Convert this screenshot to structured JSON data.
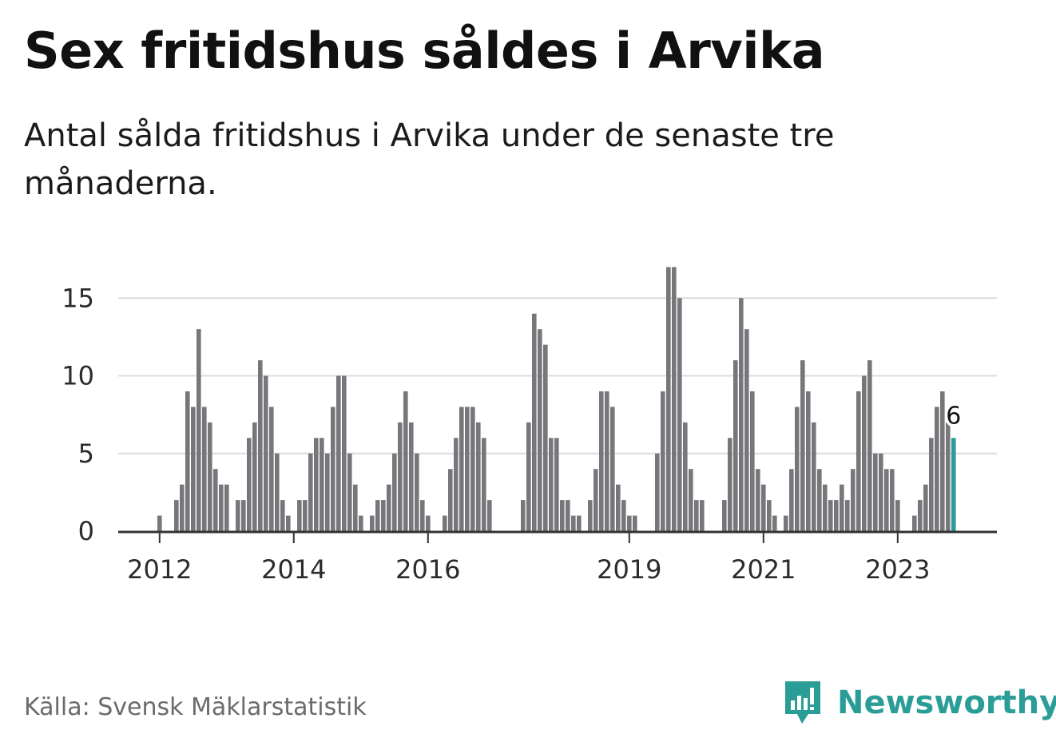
{
  "header": {
    "title": "Sex fritidshus såldes i Arvika",
    "subtitle": "Antal sålda fritidshus i Arvika under de senaste tre månaderna."
  },
  "footer": {
    "source": "Källa: Svensk Mäklarstatistik",
    "logo_text": "Newsworthy",
    "logo_icon": "bar-chart-speech-bubble-icon"
  },
  "colors": {
    "bar": "#77767a",
    "highlight": "#2a9d96",
    "grid": "#dcdcdc",
    "axis": "#333333",
    "brand": "#2a9d96"
  },
  "chart_data": {
    "type": "bar",
    "title": "Sex fritidshus såldes i Arvika",
    "subtitle": "Antal sålda fritidshus i Arvika under de senaste tre månaderna.",
    "xlabel": "",
    "ylabel": "",
    "ylim": [
      0,
      17
    ],
    "yticks": [
      0,
      5,
      10,
      15
    ],
    "grid": true,
    "legend": "none",
    "x_range": [
      "2011-06",
      "2024-02"
    ],
    "x_ticks": [
      {
        "x": "2012-01",
        "label": "2012"
      },
      {
        "x": "2014-01",
        "label": "2014"
      },
      {
        "x": "2016-01",
        "label": "2016"
      },
      {
        "x": "2019-01",
        "label": "2019"
      },
      {
        "x": "2021-01",
        "label": "2021"
      },
      {
        "x": "2023-01",
        "label": "2023"
      }
    ],
    "x": [
      "2011-06",
      "2011-07",
      "2011-08",
      "2011-09",
      "2011-10",
      "2011-11",
      "2011-12",
      "2012-01",
      "2012-02",
      "2012-03",
      "2012-04",
      "2012-05",
      "2012-06",
      "2012-07",
      "2012-08",
      "2012-09",
      "2012-10",
      "2012-11",
      "2012-12",
      "2013-01",
      "2013-02",
      "2013-03",
      "2013-04",
      "2013-05",
      "2013-06",
      "2013-07",
      "2013-08",
      "2013-09",
      "2013-10",
      "2013-11",
      "2013-12",
      "2014-01",
      "2014-02",
      "2014-03",
      "2014-04",
      "2014-05",
      "2014-06",
      "2014-07",
      "2014-08",
      "2014-09",
      "2014-10",
      "2014-11",
      "2014-12",
      "2015-01",
      "2015-02",
      "2015-03",
      "2015-04",
      "2015-05",
      "2015-06",
      "2015-07",
      "2015-08",
      "2015-09",
      "2015-10",
      "2015-11",
      "2015-12",
      "2016-01",
      "2016-02",
      "2016-03",
      "2016-04",
      "2016-05",
      "2016-06",
      "2016-07",
      "2016-08",
      "2016-09",
      "2016-10",
      "2016-11",
      "2016-12",
      "2017-01",
      "2017-02",
      "2017-03",
      "2017-04",
      "2017-05",
      "2017-06",
      "2017-07",
      "2017-08",
      "2017-09",
      "2017-10",
      "2017-11",
      "2017-12",
      "2018-01",
      "2018-02",
      "2018-03",
      "2018-04",
      "2018-05",
      "2018-06",
      "2018-07",
      "2018-08",
      "2018-09",
      "2018-10",
      "2018-11",
      "2018-12",
      "2019-01",
      "2019-02",
      "2019-03",
      "2019-04",
      "2019-05",
      "2019-06",
      "2019-07",
      "2019-08",
      "2019-09",
      "2019-10",
      "2019-11",
      "2019-12",
      "2020-01",
      "2020-02",
      "2020-03",
      "2020-04",
      "2020-05",
      "2020-06",
      "2020-07",
      "2020-08",
      "2020-09",
      "2020-10",
      "2020-11",
      "2020-12",
      "2021-01",
      "2021-02",
      "2021-03",
      "2021-04",
      "2021-05",
      "2021-06",
      "2021-07",
      "2021-08",
      "2021-09",
      "2021-10",
      "2021-11",
      "2021-12",
      "2022-01",
      "2022-02",
      "2022-03",
      "2022-04",
      "2022-05",
      "2022-06",
      "2022-07",
      "2022-08",
      "2022-09",
      "2022-10",
      "2022-11",
      "2022-12",
      "2023-01",
      "2023-02",
      "2023-03",
      "2023-04",
      "2023-05",
      "2023-06",
      "2023-07",
      "2023-08",
      "2023-09",
      "2023-10",
      "2023-11"
    ],
    "values": [
      0,
      0,
      0,
      0,
      0,
      0,
      0,
      1,
      0,
      0,
      2,
      3,
      9,
      8,
      13,
      8,
      7,
      4,
      3,
      3,
      0,
      2,
      2,
      6,
      7,
      11,
      10,
      8,
      5,
      2,
      1,
      0,
      2,
      2,
      5,
      6,
      6,
      5,
      8,
      10,
      10,
      5,
      3,
      1,
      0,
      1,
      2,
      2,
      3,
      5,
      7,
      9,
      7,
      5,
      2,
      1,
      0,
      0,
      1,
      4,
      6,
      8,
      8,
      8,
      7,
      6,
      2,
      0,
      0,
      0,
      0,
      0,
      2,
      7,
      14,
      13,
      12,
      6,
      6,
      2,
      2,
      1,
      1,
      0,
      2,
      4,
      9,
      9,
      8,
      3,
      2,
      1,
      1,
      0,
      0,
      0,
      5,
      9,
      17,
      17,
      15,
      7,
      4,
      2,
      2,
      0,
      0,
      0,
      2,
      6,
      11,
      15,
      13,
      9,
      4,
      3,
      2,
      1,
      0,
      1,
      4,
      8,
      11,
      9,
      7,
      4,
      3,
      2,
      2,
      3,
      2,
      4,
      9,
      10,
      11,
      5,
      5,
      4,
      4,
      2,
      0,
      0,
      1,
      2,
      3,
      6,
      8,
      9,
      7,
      6
    ],
    "annotations": [
      {
        "x": "2023-11",
        "value": 6,
        "label": "6"
      }
    ]
  }
}
